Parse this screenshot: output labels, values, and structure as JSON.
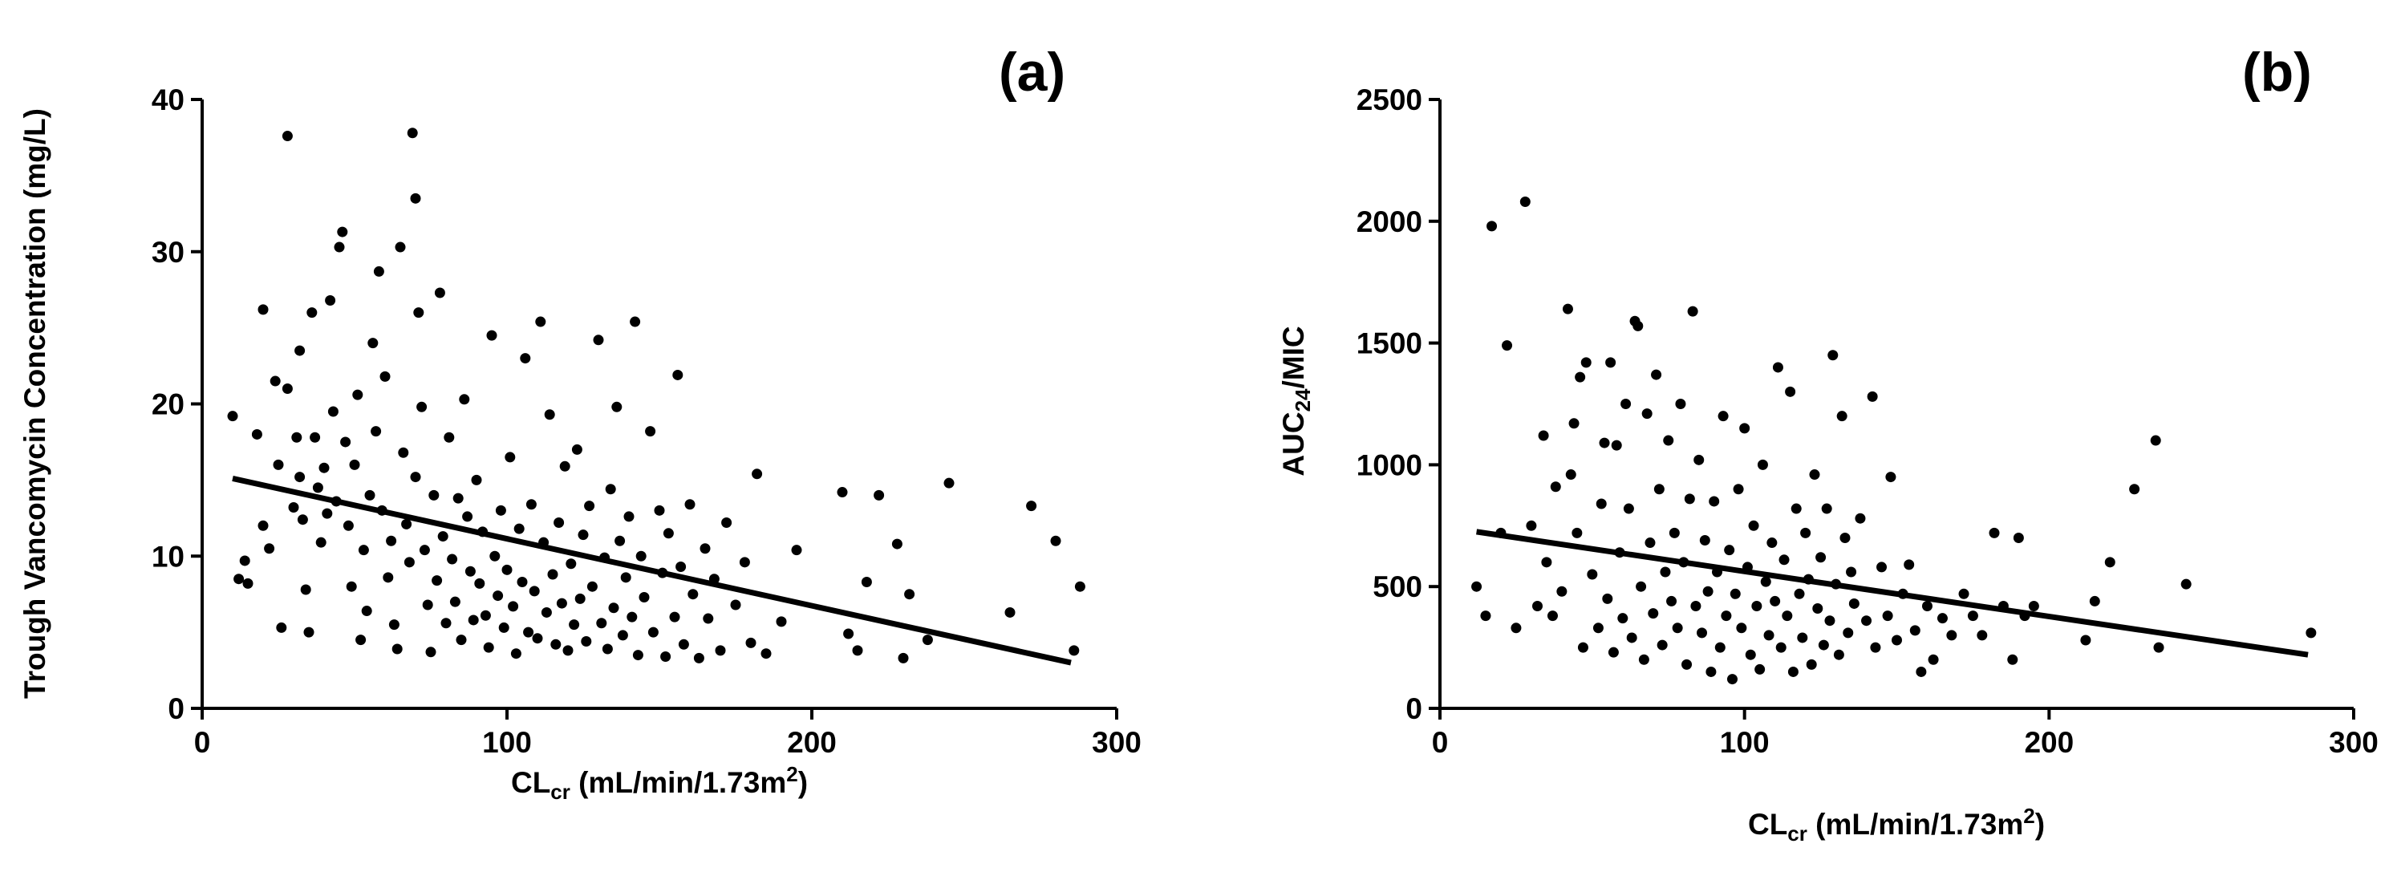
{
  "chart_data": [
    {
      "type": "scatter",
      "panel_label": "(a)",
      "xlabel": {
        "main": "CL",
        "sub": "cr",
        "rest": " (mL/min/1.73m",
        "sup": "2",
        "end": ")"
      },
      "ylabel": "Trough Vancomycin Concentration (mg/L)",
      "xlim": [
        0,
        300
      ],
      "ylim": [
        0,
        40
      ],
      "xticks": [
        "0",
        "100",
        "200",
        "300"
      ],
      "yticks": [
        "0",
        "10",
        "20",
        "30",
        "40"
      ],
      "regression_line": {
        "x": [
          10,
          285
        ],
        "y": [
          15.1,
          3.0
        ]
      },
      "points": [
        [
          10,
          19.2
        ],
        [
          12,
          8.5
        ],
        [
          14,
          9.7
        ],
        [
          15,
          8.2
        ],
        [
          18,
          18.0
        ],
        [
          20,
          26.2
        ],
        [
          20,
          12.0
        ],
        [
          22,
          10.5
        ],
        [
          24,
          21.5
        ],
        [
          25,
          16.0
        ],
        [
          26,
          5.3
        ],
        [
          28,
          37.6
        ],
        [
          28,
          21.0
        ],
        [
          30,
          13.2
        ],
        [
          31,
          17.8
        ],
        [
          32,
          23.5
        ],
        [
          32,
          15.2
        ],
        [
          33,
          12.4
        ],
        [
          34,
          7.8
        ],
        [
          35,
          5.0
        ],
        [
          36,
          26.0
        ],
        [
          37,
          17.8
        ],
        [
          38,
          14.5
        ],
        [
          39,
          10.9
        ],
        [
          40,
          15.8
        ],
        [
          41,
          12.8
        ],
        [
          42,
          26.8
        ],
        [
          43,
          19.5
        ],
        [
          44,
          13.6
        ],
        [
          45,
          30.3
        ],
        [
          46,
          31.3
        ],
        [
          47,
          17.5
        ],
        [
          48,
          12.0
        ],
        [
          49,
          8.0
        ],
        [
          50,
          16.0
        ],
        [
          51,
          20.6
        ],
        [
          52,
          4.5
        ],
        [
          53,
          10.4
        ],
        [
          54,
          6.4
        ],
        [
          55,
          14.0
        ],
        [
          56,
          24.0
        ],
        [
          57,
          18.2
        ],
        [
          58,
          28.7
        ],
        [
          59,
          13.0
        ],
        [
          60,
          21.8
        ],
        [
          61,
          8.6
        ],
        [
          62,
          11.0
        ],
        [
          63,
          5.5
        ],
        [
          64,
          3.9
        ],
        [
          65,
          30.3
        ],
        [
          66,
          16.8
        ],
        [
          67,
          12.1
        ],
        [
          68,
          9.6
        ],
        [
          69,
          37.8
        ],
        [
          70,
          33.5
        ],
        [
          70,
          15.2
        ],
        [
          71,
          26.0
        ],
        [
          72,
          19.8
        ],
        [
          73,
          10.4
        ],
        [
          74,
          6.8
        ],
        [
          75,
          3.7
        ],
        [
          76,
          14.0
        ],
        [
          77,
          8.4
        ],
        [
          78,
          27.3
        ],
        [
          79,
          11.3
        ],
        [
          80,
          5.6
        ],
        [
          81,
          17.8
        ],
        [
          82,
          9.8
        ],
        [
          83,
          7.0
        ],
        [
          84,
          13.8
        ],
        [
          85,
          4.5
        ],
        [
          86,
          20.3
        ],
        [
          87,
          12.6
        ],
        [
          88,
          9.0
        ],
        [
          89,
          5.8
        ],
        [
          90,
          15.0
        ],
        [
          91,
          8.2
        ],
        [
          92,
          11.6
        ],
        [
          93,
          6.1
        ],
        [
          94,
          4.0
        ],
        [
          95,
          24.5
        ],
        [
          96,
          10.0
        ],
        [
          97,
          7.4
        ],
        [
          98,
          13.0
        ],
        [
          99,
          5.3
        ],
        [
          100,
          9.1
        ],
        [
          101,
          16.5
        ],
        [
          102,
          6.7
        ],
        [
          103,
          3.6
        ],
        [
          104,
          11.8
        ],
        [
          105,
          8.3
        ],
        [
          106,
          23.0
        ],
        [
          107,
          5.0
        ],
        [
          108,
          13.4
        ],
        [
          109,
          7.7
        ],
        [
          110,
          4.6
        ],
        [
          111,
          25.4
        ],
        [
          112,
          10.9
        ],
        [
          113,
          6.3
        ],
        [
          114,
          19.3
        ],
        [
          115,
          8.8
        ],
        [
          116,
          4.2
        ],
        [
          117,
          12.2
        ],
        [
          118,
          6.9
        ],
        [
          119,
          15.9
        ],
        [
          120,
          3.8
        ],
        [
          121,
          9.5
        ],
        [
          122,
          5.5
        ],
        [
          123,
          17.0
        ],
        [
          124,
          7.2
        ],
        [
          125,
          11.4
        ],
        [
          126,
          4.4
        ],
        [
          127,
          13.3
        ],
        [
          128,
          8.0
        ],
        [
          130,
          24.2
        ],
        [
          131,
          5.6
        ],
        [
          132,
          9.9
        ],
        [
          133,
          3.9
        ],
        [
          134,
          14.4
        ],
        [
          135,
          6.6
        ],
        [
          136,
          19.8
        ],
        [
          137,
          11.0
        ],
        [
          138,
          4.8
        ],
        [
          139,
          8.6
        ],
        [
          140,
          12.6
        ],
        [
          141,
          6.0
        ],
        [
          142,
          25.4
        ],
        [
          143,
          3.5
        ],
        [
          144,
          10.0
        ],
        [
          145,
          7.3
        ],
        [
          147,
          18.2
        ],
        [
          148,
          5.0
        ],
        [
          150,
          13.0
        ],
        [
          151,
          8.9
        ],
        [
          152,
          3.4
        ],
        [
          153,
          11.5
        ],
        [
          155,
          6.0
        ],
        [
          156,
          21.9
        ],
        [
          157,
          9.3
        ],
        [
          158,
          4.2
        ],
        [
          160,
          13.4
        ],
        [
          161,
          7.5
        ],
        [
          163,
          3.3
        ],
        [
          165,
          10.5
        ],
        [
          166,
          5.9
        ],
        [
          168,
          8.5
        ],
        [
          170,
          3.8
        ],
        [
          172,
          12.2
        ],
        [
          175,
          6.8
        ],
        [
          178,
          9.6
        ],
        [
          180,
          4.3
        ],
        [
          182,
          15.4
        ],
        [
          185,
          3.6
        ],
        [
          190,
          5.7
        ],
        [
          195,
          10.4
        ],
        [
          210,
          14.2
        ],
        [
          212,
          4.9
        ],
        [
          215,
          3.8
        ],
        [
          218,
          8.3
        ],
        [
          222,
          14.0
        ],
        [
          228,
          10.8
        ],
        [
          230,
          3.3
        ],
        [
          232,
          7.5
        ],
        [
          238,
          4.5
        ],
        [
          245,
          14.8
        ],
        [
          265,
          6.3
        ],
        [
          272,
          13.3
        ],
        [
          280,
          11.0
        ],
        [
          286,
          3.8
        ],
        [
          288,
          8.0
        ]
      ]
    },
    {
      "type": "scatter",
      "panel_label": "(b)",
      "xlabel": {
        "main": "CL",
        "sub": "cr",
        "rest": " (mL/min/1.73m",
        "sup": "2",
        "end": ")"
      },
      "ylabel": {
        "main": "AUC",
        "sub": "24",
        "rest": "/MIC"
      },
      "xlim": [
        0,
        300
      ],
      "ylim": [
        0,
        2500
      ],
      "xticks": [
        "0",
        "100",
        "200",
        "300"
      ],
      "yticks": [
        "0",
        "500",
        "1000",
        "1500",
        "2000",
        "2500"
      ],
      "regression_line": {
        "x": [
          12,
          285
        ],
        "y": [
          725,
          220
        ]
      },
      "points": [
        [
          12,
          500
        ],
        [
          15,
          380
        ],
        [
          17,
          1980
        ],
        [
          20,
          720
        ],
        [
          22,
          1490
        ],
        [
          25,
          330
        ],
        [
          28,
          2080
        ],
        [
          30,
          750
        ],
        [
          32,
          420
        ],
        [
          34,
          1120
        ],
        [
          35,
          600
        ],
        [
          37,
          380
        ],
        [
          38,
          910
        ],
        [
          40,
          480
        ],
        [
          42,
          1640
        ],
        [
          43,
          960
        ],
        [
          44,
          1170
        ],
        [
          45,
          720
        ],
        [
          46,
          1360
        ],
        [
          47,
          250
        ],
        [
          48,
          1420
        ],
        [
          50,
          550
        ],
        [
          52,
          330
        ],
        [
          53,
          840
        ],
        [
          54,
          1090
        ],
        [
          55,
          450
        ],
        [
          56,
          1420
        ],
        [
          57,
          230
        ],
        [
          58,
          1080
        ],
        [
          59,
          640
        ],
        [
          60,
          370
        ],
        [
          61,
          1250
        ],
        [
          62,
          820
        ],
        [
          63,
          290
        ],
        [
          64,
          1590
        ],
        [
          65,
          1570
        ],
        [
          66,
          500
        ],
        [
          67,
          200
        ],
        [
          68,
          1210
        ],
        [
          69,
          680
        ],
        [
          70,
          390
        ],
        [
          71,
          1370
        ],
        [
          72,
          900
        ],
        [
          73,
          260
        ],
        [
          74,
          560
        ],
        [
          75,
          1100
        ],
        [
          76,
          440
        ],
        [
          77,
          720
        ],
        [
          78,
          330
        ],
        [
          79,
          1250
        ],
        [
          80,
          600
        ],
        [
          81,
          180
        ],
        [
          82,
          860
        ],
        [
          83,
          1630
        ],
        [
          84,
          420
        ],
        [
          85,
          1020
        ],
        [
          86,
          310
        ],
        [
          87,
          690
        ],
        [
          88,
          480
        ],
        [
          89,
          150
        ],
        [
          90,
          850
        ],
        [
          91,
          560
        ],
        [
          92,
          250
        ],
        [
          93,
          1200
        ],
        [
          94,
          380
        ],
        [
          95,
          650
        ],
        [
          96,
          120
        ],
        [
          97,
          470
        ],
        [
          98,
          900
        ],
        [
          99,
          330
        ],
        [
          100,
          1150
        ],
        [
          101,
          580
        ],
        [
          102,
          220
        ],
        [
          103,
          750
        ],
        [
          104,
          420
        ],
        [
          105,
          160
        ],
        [
          106,
          1000
        ],
        [
          107,
          520
        ],
        [
          108,
          300
        ],
        [
          109,
          680
        ],
        [
          110,
          440
        ],
        [
          111,
          1400
        ],
        [
          112,
          250
        ],
        [
          113,
          610
        ],
        [
          114,
          380
        ],
        [
          115,
          1300
        ],
        [
          116,
          150
        ],
        [
          117,
          820
        ],
        [
          118,
          470
        ],
        [
          119,
          290
        ],
        [
          120,
          720
        ],
        [
          121,
          530
        ],
        [
          122,
          180
        ],
        [
          123,
          960
        ],
        [
          124,
          410
        ],
        [
          125,
          620
        ],
        [
          126,
          260
        ],
        [
          127,
          820
        ],
        [
          128,
          360
        ],
        [
          129,
          1450
        ],
        [
          130,
          510
        ],
        [
          131,
          220
        ],
        [
          132,
          1200
        ],
        [
          133,
          700
        ],
        [
          134,
          310
        ],
        [
          135,
          560
        ],
        [
          136,
          430
        ],
        [
          138,
          780
        ],
        [
          140,
          360
        ],
        [
          142,
          1280
        ],
        [
          143,
          250
        ],
        [
          145,
          580
        ],
        [
          147,
          380
        ],
        [
          148,
          950
        ],
        [
          150,
          280
        ],
        [
          152,
          470
        ],
        [
          154,
          590
        ],
        [
          156,
          320
        ],
        [
          158,
          150
        ],
        [
          160,
          420
        ],
        [
          162,
          200
        ],
        [
          165,
          370
        ],
        [
          168,
          300
        ],
        [
          172,
          470
        ],
        [
          175,
          380
        ],
        [
          178,
          300
        ],
        [
          182,
          720
        ],
        [
          185,
          420
        ],
        [
          188,
          200
        ],
        [
          190,
          700
        ],
        [
          192,
          380
        ],
        [
          195,
          420
        ],
        [
          212,
          280
        ],
        [
          215,
          440
        ],
        [
          220,
          600
        ],
        [
          228,
          900
        ],
        [
          235,
          1100
        ],
        [
          236,
          250
        ],
        [
          245,
          510
        ],
        [
          286,
          310
        ]
      ]
    }
  ]
}
